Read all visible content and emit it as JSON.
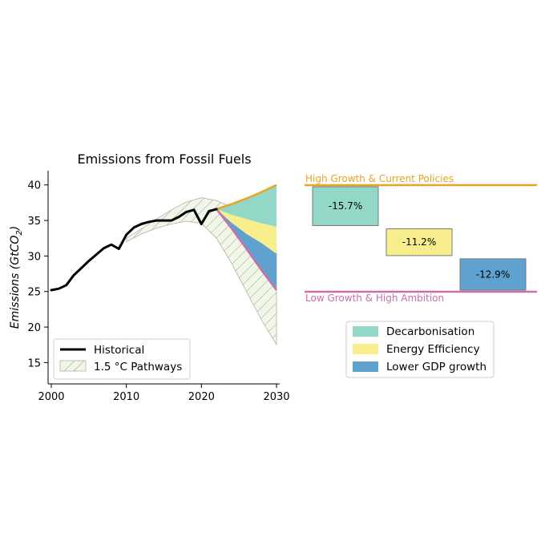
{
  "chart_data": [
    {
      "type": "line",
      "title": "Emissions from Fossil Fuels",
      "ylabel_main": "Emissions (GtCO",
      "ylabel_sub": "2",
      "ylabel_close": ")",
      "xlim": [
        2000,
        2030
      ],
      "ylim": [
        12,
        42
      ],
      "xticks": [
        2000,
        2010,
        2020,
        2030
      ],
      "yticks": [
        15,
        20,
        25,
        30,
        35,
        40
      ],
      "legend": {
        "historical": "Historical",
        "pathways": "1.5 °C Pathways"
      },
      "historical": {
        "x": [
          2000,
          2001,
          2002,
          2003,
          2004,
          2005,
          2006,
          2007,
          2008,
          2009,
          2010,
          2011,
          2012,
          2013,
          2014,
          2015,
          2016,
          2017,
          2018,
          2019,
          2020,
          2021,
          2022
        ],
        "y": [
          25.2,
          25.4,
          25.9,
          27.3,
          28.3,
          29.3,
          30.2,
          31.1,
          31.6,
          31.0,
          33.0,
          34.0,
          34.5,
          34.8,
          35.0,
          35.0,
          35.0,
          35.5,
          36.2,
          36.5,
          34.5,
          36.3,
          36.6
        ]
      },
      "pathways_band": {
        "x": [
          2010,
          2012,
          2014,
          2016,
          2018,
          2020,
          2022,
          2024,
          2026,
          2028,
          2030
        ],
        "upper": [
          32.5,
          33.8,
          35.2,
          36.5,
          37.6,
          38.2,
          37.8,
          36.9,
          35.5,
          33.5,
          30.8
        ],
        "lower": [
          32.0,
          33.1,
          33.9,
          34.5,
          34.9,
          34.6,
          32.5,
          29.0,
          25.0,
          21.0,
          17.5
        ]
      },
      "scenario_fans": {
        "x": [
          2022,
          2024,
          2026,
          2028,
          2030
        ],
        "high_growth": [
          36.6,
          37.3,
          38.1,
          39.0,
          40.0
        ],
        "after_decarbonisation": [
          36.6,
          35.8,
          35.2,
          34.6,
          34.1
        ],
        "after_energy_efficiency": [
          36.6,
          34.7,
          33.1,
          31.8,
          30.3
        ],
        "low_ambition": [
          36.6,
          33.9,
          31.0,
          28.0,
          25.2
        ]
      },
      "colors": {
        "historical": "#000000",
        "band_fill": "#f1f7e6",
        "band_edge": "#b0b0b0",
        "decarbonisation": "#93d8c6",
        "energy_efficiency": "#f9ee8d",
        "lower_gdp": "#5fa2cf",
        "high_line": "#e8a422",
        "low_line": "#cc6fa6"
      }
    },
    {
      "type": "bar",
      "subtype": "waterfall",
      "top_reference_label": "High Growth & Current Policies",
      "bottom_reference_label": "Low Growth & High Ambition",
      "categories": [
        "Decarbonisation",
        "Energy Efficiency",
        "Lower GDP growth"
      ],
      "values": [
        -15.7,
        -11.2,
        -12.9
      ],
      "value_labels": [
        "-15.7%",
        "-11.2%",
        "-12.9%"
      ],
      "colors": [
        "#93d8c6",
        "#f9ee8d",
        "#5fa2cf"
      ],
      "top_color": "#e8a422",
      "bottom_color": "#cc6fa6",
      "legend_location": "below"
    }
  ]
}
